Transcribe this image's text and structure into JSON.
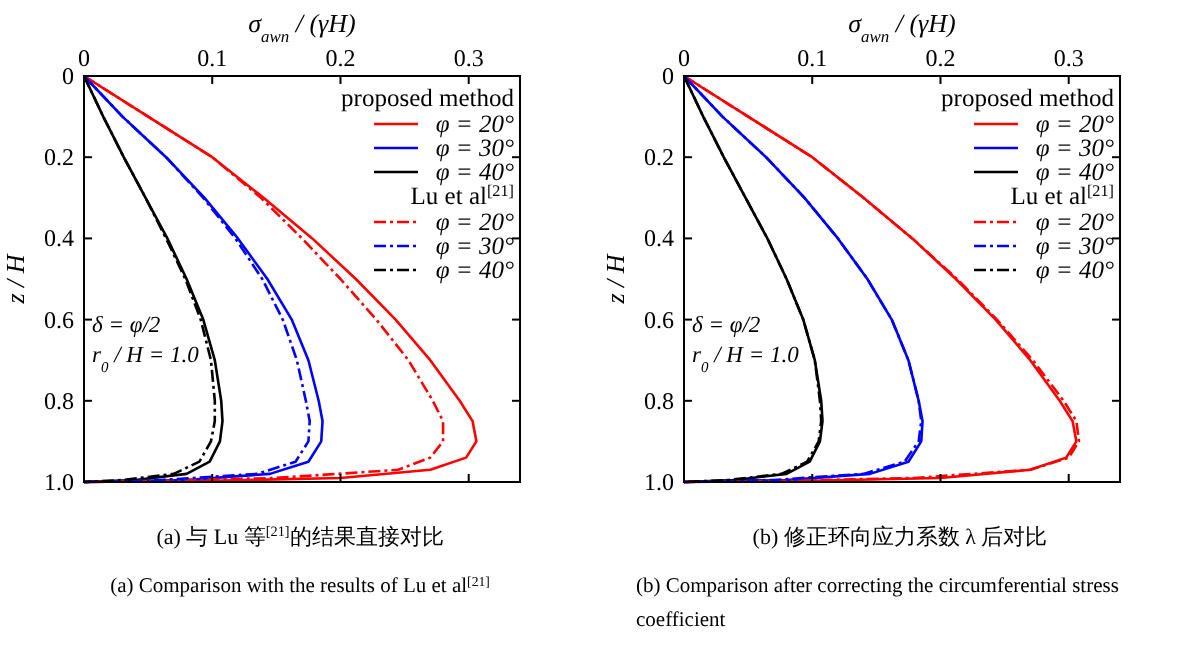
{
  "chart_data": [
    {
      "type": "line",
      "title": "(a) 与 Lu 等$^{[21]}$的结果直接对比",
      "subtitle": "(a) Comparison with the results of Lu et al$^{[21]}$",
      "xlabel": "σ$_{awn}$ / (γH)",
      "ylabel": "z / H",
      "xlim": [
        0,
        0.34
      ],
      "xticks": [
        0,
        0.1,
        0.2,
        0.3
      ],
      "ylim": [
        1,
        0
      ],
      "yticks": [
        0,
        0.2,
        0.4,
        0.6,
        0.8,
        {
          "value": 1,
          "label": "1.0"
        }
      ],
      "legend": "top right",
      "legend_title": "proposed method",
      "annotations": [
        "Lu et al$^{[21]}$",
        "δ = φ/2",
        "r$_{0}$ / H = 1.0"
      ],
      "series": [
        {
          "name": "φ = 20°",
          "color": "#ff0000",
          "line_style": "solid",
          "x": [
            0,
            0.05,
            0.1,
            0.14,
            0.178,
            0.212,
            0.243,
            0.27,
            0.293,
            0.303,
            0.306,
            0.298,
            0.27,
            0.2,
            0.1,
            0
          ],
          "values": [
            0,
            0.1,
            0.2,
            0.3,
            0.4,
            0.5,
            0.6,
            0.7,
            0.8,
            0.85,
            0.9,
            0.94,
            0.97,
            0.99,
            0.997,
            1
          ]
        },
        {
          "name": "φ = 30°",
          "color": "#0000ff",
          "line_style": "solid",
          "x": [
            0,
            0.03,
            0.064,
            0.094,
            0.12,
            0.143,
            0.162,
            0.175,
            0.183,
            0.186,
            0.185,
            0.175,
            0.145,
            0.08,
            0
          ],
          "values": [
            0,
            0.1,
            0.2,
            0.3,
            0.4,
            0.5,
            0.6,
            0.7,
            0.8,
            0.85,
            0.9,
            0.95,
            0.98,
            0.995,
            1
          ]
        },
        {
          "name": "φ = 40°",
          "color": "#000000",
          "line_style": "solid",
          "x": [
            0,
            0.015,
            0.031,
            0.048,
            0.065,
            0.08,
            0.093,
            0.102,
            0.107,
            0.108,
            0.106,
            0.098,
            0.08,
            0.04,
            0
          ],
          "values": [
            0,
            0.1,
            0.2,
            0.3,
            0.4,
            0.5,
            0.6,
            0.7,
            0.8,
            0.85,
            0.9,
            0.95,
            0.98,
            0.995,
            1
          ]
        },
        {
          "name": "φ = 20°",
          "color": "#ff0000",
          "line_style": "dashed",
          "x": [
            0,
            0.05,
            0.1,
            0.138,
            0.17,
            0.2,
            0.228,
            0.253,
            0.272,
            0.28,
            0.28,
            0.27,
            0.245,
            0.15,
            0.06,
            0
          ],
          "values": [
            0,
            0.1,
            0.2,
            0.3,
            0.4,
            0.5,
            0.6,
            0.7,
            0.8,
            0.85,
            0.9,
            0.94,
            0.97,
            0.99,
            0.997,
            1
          ]
        },
        {
          "name": "φ = 30°",
          "color": "#0000ff",
          "line_style": "dashed",
          "x": [
            0,
            0.03,
            0.064,
            0.093,
            0.118,
            0.139,
            0.155,
            0.166,
            0.173,
            0.176,
            0.175,
            0.165,
            0.135,
            0.06,
            0
          ],
          "values": [
            0,
            0.1,
            0.2,
            0.3,
            0.4,
            0.5,
            0.6,
            0.7,
            0.8,
            0.85,
            0.9,
            0.95,
            0.98,
            0.995,
            1
          ]
        },
        {
          "name": "φ = 40°",
          "color": "#000000",
          "line_style": "dashed",
          "x": [
            0,
            0.015,
            0.031,
            0.048,
            0.064,
            0.079,
            0.091,
            0.099,
            0.102,
            0.102,
            0.099,
            0.09,
            0.07,
            0.03,
            0
          ],
          "values": [
            0,
            0.1,
            0.2,
            0.3,
            0.4,
            0.5,
            0.6,
            0.7,
            0.8,
            0.85,
            0.9,
            0.95,
            0.98,
            0.995,
            1
          ]
        }
      ]
    },
    {
      "type": "line",
      "title": "(b) 修正环向应力系数 λ 后对比",
      "subtitle": "(b) Comparison after correcting the circumferential stress coefficient",
      "xlabel": "σ$_{awn}$ / (γH)",
      "ylabel": "z / H",
      "xlim": [
        0,
        0.34
      ],
      "xticks": [
        0,
        0.1,
        0.2,
        0.3
      ],
      "ylim": [
        1,
        0
      ],
      "yticks": [
        0,
        0.2,
        0.4,
        0.6,
        0.8,
        {
          "value": 1,
          "label": "1.0"
        }
      ],
      "legend": "top right",
      "legend_title": "proposed method",
      "annotations": [
        "Lu et al$^{[21]}$",
        "δ = φ/2",
        "r$_{0}$ / H = 1.0"
      ],
      "series": [
        {
          "name": "φ = 20°",
          "color": "#ff0000",
          "line_style": "solid",
          "x": [
            0,
            0.05,
            0.1,
            0.14,
            0.178,
            0.212,
            0.243,
            0.27,
            0.293,
            0.303,
            0.306,
            0.298,
            0.27,
            0.2,
            0.1,
            0
          ],
          "values": [
            0,
            0.1,
            0.2,
            0.3,
            0.4,
            0.5,
            0.6,
            0.7,
            0.8,
            0.85,
            0.9,
            0.94,
            0.97,
            0.99,
            0.997,
            1
          ]
        },
        {
          "name": "φ = 30°",
          "color": "#0000ff",
          "line_style": "solid",
          "x": [
            0,
            0.03,
            0.064,
            0.094,
            0.12,
            0.143,
            0.162,
            0.175,
            0.183,
            0.186,
            0.185,
            0.175,
            0.145,
            0.08,
            0
          ],
          "values": [
            0,
            0.1,
            0.2,
            0.3,
            0.4,
            0.5,
            0.6,
            0.7,
            0.8,
            0.85,
            0.9,
            0.95,
            0.98,
            0.995,
            1
          ]
        },
        {
          "name": "φ = 40°",
          "color": "#000000",
          "line_style": "solid",
          "x": [
            0,
            0.015,
            0.031,
            0.048,
            0.065,
            0.08,
            0.093,
            0.102,
            0.107,
            0.108,
            0.106,
            0.098,
            0.08,
            0.04,
            0
          ],
          "values": [
            0,
            0.1,
            0.2,
            0.3,
            0.4,
            0.5,
            0.6,
            0.7,
            0.8,
            0.85,
            0.9,
            0.95,
            0.98,
            0.995,
            1
          ]
        },
        {
          "name": "φ = 20°",
          "color": "#ff0000",
          "line_style": "dashed",
          "x": [
            0,
            0.05,
            0.1,
            0.14,
            0.178,
            0.213,
            0.244,
            0.272,
            0.296,
            0.306,
            0.308,
            0.3,
            0.27,
            0.18,
            0.08,
            0
          ],
          "values": [
            0,
            0.1,
            0.2,
            0.3,
            0.4,
            0.5,
            0.6,
            0.7,
            0.8,
            0.85,
            0.9,
            0.94,
            0.97,
            0.99,
            0.997,
            1
          ]
        },
        {
          "name": "φ = 30°",
          "color": "#0000ff",
          "line_style": "dashed",
          "x": [
            0,
            0.03,
            0.064,
            0.094,
            0.12,
            0.143,
            0.162,
            0.175,
            0.183,
            0.185,
            0.183,
            0.172,
            0.14,
            0.07,
            0
          ],
          "values": [
            0,
            0.1,
            0.2,
            0.3,
            0.4,
            0.5,
            0.6,
            0.7,
            0.8,
            0.85,
            0.9,
            0.95,
            0.98,
            0.995,
            1
          ]
        },
        {
          "name": "φ = 40°",
          "color": "#000000",
          "line_style": "dashed",
          "x": [
            0,
            0.015,
            0.031,
            0.048,
            0.065,
            0.08,
            0.093,
            0.102,
            0.106,
            0.107,
            0.105,
            0.096,
            0.076,
            0.035,
            0
          ],
          "values": [
            0,
            0.1,
            0.2,
            0.3,
            0.4,
            0.5,
            0.6,
            0.7,
            0.8,
            0.85,
            0.9,
            0.95,
            0.98,
            0.995,
            1
          ]
        }
      ]
    }
  ]
}
